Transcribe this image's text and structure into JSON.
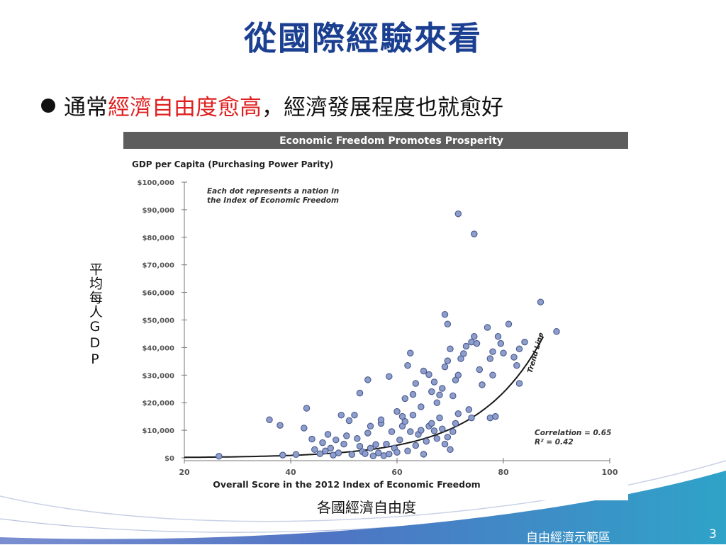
{
  "slide": {
    "title": "從國際經驗來看",
    "bullet_pre": "通常",
    "bullet_highlight": "經濟自由度愈高",
    "bullet_post": "，經濟發展程度也就愈好",
    "y_caption": "平均每人GDP",
    "x_caption": "各國經濟自由度",
    "footer": "自由經濟示範區",
    "page_number": "3",
    "colors": {
      "title": "#1b3f91",
      "highlight": "#e02020",
      "footer_band": "#3a9cc8"
    }
  },
  "chart_data": {
    "type": "scatter",
    "title": "Economic Freedom Promotes Prosperity",
    "ylabel": "GDP per Capita (Purchasing Power Parity)",
    "xlabel": "Overall Score in the 2012 Index of Economic Freedom",
    "annotation": "Each dot represents a nation in the Index of Economic Freedom",
    "trend_label": "Trend Line",
    "correlation_text": "Correlation = 0.65",
    "r2_text": "R² = 0.42",
    "xlim": [
      20,
      100
    ],
    "ylim": [
      0,
      100000
    ],
    "xticks": [
      20,
      40,
      60,
      80,
      100
    ],
    "xtick_labels": [
      "20",
      "40",
      "60",
      "80",
      "100"
    ],
    "yticks": [
      0,
      10000,
      20000,
      30000,
      40000,
      50000,
      60000,
      70000,
      80000,
      90000,
      100000
    ],
    "ytick_labels": [
      "$0",
      "$10,000",
      "$20,000",
      "$30,000",
      "$40,000",
      "$50,000",
      "$60,000",
      "$70,000",
      "$80,000",
      "$90,000",
      "$100,000"
    ],
    "trend": {
      "a": 170,
      "b": 0.0823,
      "x_from": 20,
      "x_to": 87.5
    },
    "points": [
      [
        26.5,
        600
      ],
      [
        36,
        13800
      ],
      [
        38,
        11800
      ],
      [
        38.5,
        1000
      ],
      [
        41,
        1200
      ],
      [
        42.5,
        10800
      ],
      [
        43,
        18000
      ],
      [
        44,
        6800
      ],
      [
        44.5,
        3000
      ],
      [
        45.5,
        1500
      ],
      [
        46,
        5500
      ],
      [
        46.5,
        2500
      ],
      [
        47,
        8500
      ],
      [
        47.5,
        3500
      ],
      [
        48,
        1000
      ],
      [
        48.5,
        6500
      ],
      [
        49,
        1800
      ],
      [
        49.5,
        15500
      ],
      [
        50,
        5000
      ],
      [
        50.5,
        8000
      ],
      [
        51,
        13500
      ],
      [
        51.5,
        1200
      ],
      [
        52,
        15500
      ],
      [
        52.5,
        7000
      ],
      [
        53,
        4200
      ],
      [
        53.5,
        2200
      ],
      [
        54,
        1500
      ],
      [
        54.5,
        9000
      ],
      [
        55,
        3500
      ],
      [
        55.5,
        700
      ],
      [
        56,
        4800
      ],
      [
        56.5,
        1800
      ],
      [
        57,
        12500
      ],
      [
        57.5,
        800
      ],
      [
        58,
        5000
      ],
      [
        58.5,
        1400
      ],
      [
        59,
        9500
      ],
      [
        59.5,
        3500
      ],
      [
        60,
        2000
      ],
      [
        60.5,
        6500
      ],
      [
        61,
        11500
      ],
      [
        61.5,
        13200
      ],
      [
        62,
        2500
      ],
      [
        62.5,
        9500
      ],
      [
        63,
        15500
      ],
      [
        63.5,
        4500
      ],
      [
        64,
        8500
      ],
      [
        64.5,
        10000
      ],
      [
        65,
        1300
      ],
      [
        65.5,
        6000
      ],
      [
        66,
        11500
      ],
      [
        66.5,
        12500
      ],
      [
        67,
        9800
      ],
      [
        67.5,
        7000
      ],
      [
        68,
        14500
      ],
      [
        68.5,
        10500
      ],
      [
        69,
        5000
      ],
      [
        69.5,
        7500
      ],
      [
        70,
        3000
      ],
      [
        70.5,
        9500
      ],
      [
        71,
        12500
      ],
      [
        71.5,
        16000
      ],
      [
        73.5,
        17500
      ],
      [
        74,
        14500
      ],
      [
        77.5,
        14500
      ],
      [
        78.5,
        15000
      ],
      [
        78,
        30000
      ],
      [
        53,
        23500
      ],
      [
        54.5,
        28300
      ],
      [
        58.5,
        29500
      ],
      [
        61,
        15000
      ],
      [
        61.5,
        21500
      ],
      [
        62,
        33500
      ],
      [
        62.5,
        38000
      ],
      [
        63,
        23000
      ],
      [
        63.5,
        27000
      ],
      [
        64.5,
        18500
      ],
      [
        65,
        31500
      ],
      [
        66,
        30200
      ],
      [
        66.5,
        24000
      ],
      [
        67,
        27500
      ],
      [
        67.5,
        20000
      ],
      [
        68,
        22800
      ],
      [
        68.5,
        25200
      ],
      [
        69,
        33000
      ],
      [
        69.5,
        35200
      ],
      [
        70,
        39500
      ],
      [
        70.5,
        22500
      ],
      [
        71,
        28200
      ],
      [
        71.5,
        30000
      ],
      [
        72,
        36000
      ],
      [
        72.5,
        37800
      ],
      [
        73,
        40500
      ],
      [
        74,
        42000
      ],
      [
        74.5,
        44000
      ],
      [
        75,
        41500
      ],
      [
        75.5,
        32000
      ],
      [
        76,
        26500
      ],
      [
        77,
        47300
      ],
      [
        77.5,
        36000
      ],
      [
        78,
        38500
      ],
      [
        79,
        44000
      ],
      [
        79.5,
        41500
      ],
      [
        80,
        38000
      ],
      [
        81,
        48500
      ],
      [
        82,
        36500
      ],
      [
        82.5,
        33500
      ],
      [
        83,
        39500
      ],
      [
        84,
        42000
      ],
      [
        87,
        56500
      ],
      [
        90,
        45800
      ],
      [
        69,
        52000
      ],
      [
        69.5,
        48500
      ],
      [
        71.5,
        88500
      ],
      [
        74.5,
        81200
      ],
      [
        83,
        27000
      ],
      [
        60,
        16800
      ],
      [
        57,
        13800
      ],
      [
        55,
        11500
      ]
    ]
  }
}
